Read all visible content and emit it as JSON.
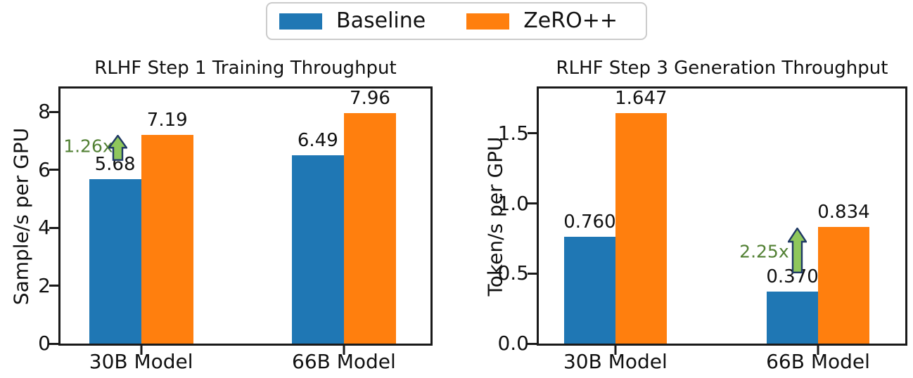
{
  "legend": {
    "items": [
      {
        "label": "Baseline",
        "color": "#1f77b4"
      },
      {
        "label": "ZeRO++",
        "color": "#ff7f0e"
      }
    ]
  },
  "colors": {
    "baseline": "#1f77b4",
    "zeropp": "#ff7f0e",
    "annotation_text": "#538135",
    "arrow_fill": "#8fc75c",
    "arrow_stroke": "#1f3864",
    "spine": "#1a1a1a"
  },
  "chart_data": [
    {
      "type": "bar",
      "title": "RLHF Step 1 Training Throughput",
      "xlabel": "",
      "ylabel": "Sample/s per GPU",
      "categories": [
        "30B Model",
        "66B Model"
      ],
      "series": [
        {
          "name": "Baseline",
          "color": "#1f77b4",
          "values": [
            5.68,
            6.49
          ],
          "value_labels": [
            "5.68",
            "6.49"
          ]
        },
        {
          "name": "ZeRO++",
          "color": "#ff7f0e",
          "values": [
            7.19,
            7.96
          ],
          "value_labels": [
            "7.19",
            "7.96"
          ]
        }
      ],
      "ylim": [
        0,
        8.8
      ],
      "yticks": [
        {
          "value": 0,
          "label": "0"
        },
        {
          "value": 2,
          "label": "2"
        },
        {
          "value": 4,
          "label": "4"
        },
        {
          "value": 6,
          "label": "6"
        },
        {
          "value": 8,
          "label": "8"
        }
      ],
      "grid": false,
      "legend_position": "figure-top-center",
      "annotation": {
        "label": "1.26x",
        "arrow": {
          "x_frac": 0.154,
          "y_from": 6.3,
          "y_to": 7.19
        },
        "label_pos": {
          "x_frac": 0.075,
          "y": 6.82
        }
      }
    },
    {
      "type": "bar",
      "title": "RLHF Step 3 Generation Throughput",
      "xlabel": "",
      "ylabel": "Token/s per GPU",
      "categories": [
        "30B Model",
        "66B Model"
      ],
      "series": [
        {
          "name": "Baseline",
          "color": "#1f77b4",
          "values": [
            0.76,
            0.37
          ],
          "value_labels": [
            "0.760",
            "0.370"
          ]
        },
        {
          "name": "ZeRO++",
          "color": "#ff7f0e",
          "values": [
            1.647,
            0.834
          ],
          "value_labels": [
            "1.647",
            "0.834"
          ]
        }
      ],
      "ylim": [
        0,
        1.82
      ],
      "yticks": [
        {
          "value": 0,
          "label": "0.0"
        },
        {
          "value": 0.5,
          "label": "0.5"
        },
        {
          "value": 1,
          "label": "1.0"
        },
        {
          "value": 1.5,
          "label": "1.5"
        }
      ],
      "grid": false,
      "legend_position": "figure-top-center",
      "annotation": {
        "label": "2.25x",
        "arrow": {
          "x_frac": 0.705,
          "y_from": 0.5,
          "y_to": 0.825
        },
        "label_pos": {
          "x_frac": 0.615,
          "y": 0.655
        }
      }
    }
  ]
}
